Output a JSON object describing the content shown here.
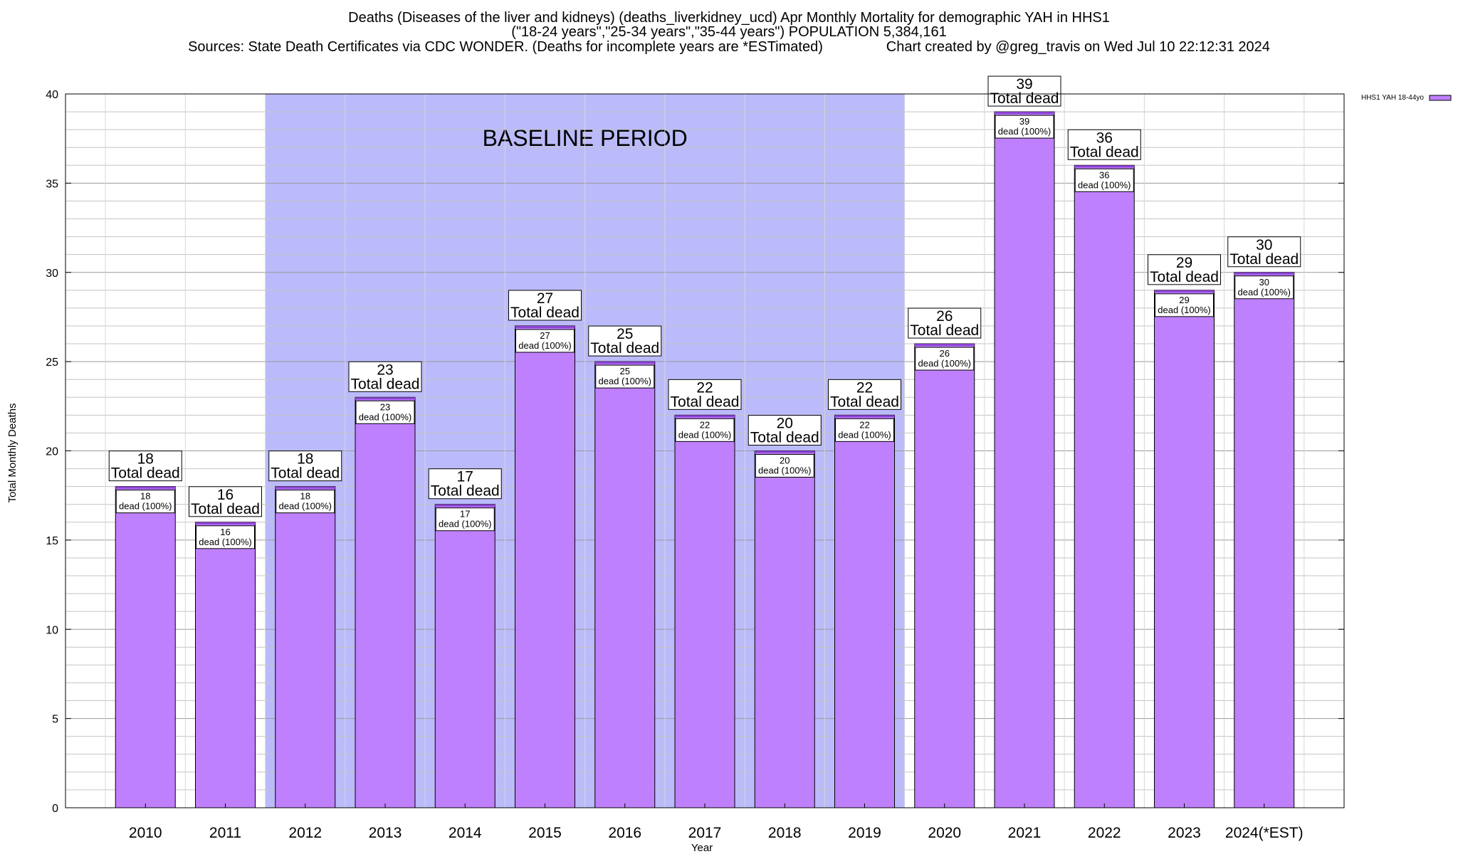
{
  "header": {
    "line1": "Deaths (Diseases of the liver and kidneys) (deaths_liverkidney_ucd) Apr Monthly Mortality for demographic YAH in HHS1",
    "line2": "(\"18-24 years\",\"25-34 years\",\"35-44 years\") POPULATION 5,384,161",
    "line3": "Sources: State Death Certificates via CDC WONDER. (Deaths for incomplete years are *ESTimated)                Chart created by @greg_travis on Wed Jul 10 22:12:31 2024"
  },
  "chart_data": {
    "type": "bar",
    "xlabel": "Year",
    "ylabel": "Total Monthly Deaths",
    "ylim": [
      0,
      40
    ],
    "yticks": [
      0,
      5,
      10,
      15,
      20,
      25,
      30,
      35,
      40
    ],
    "minor_grid_step": 1,
    "categories": [
      "2010",
      "2011",
      "2012",
      "2013",
      "2014",
      "2015",
      "2016",
      "2017",
      "2018",
      "2019",
      "2020",
      "2021",
      "2022",
      "2023",
      "2024(*EST)"
    ],
    "series": [
      {
        "name": "HHS1 YAH 18-44yo",
        "values": [
          18,
          16,
          18,
          23,
          17,
          27,
          25,
          22,
          20,
          22,
          26,
          39,
          36,
          29,
          30
        ],
        "inner_labels": [
          "18\ndead (100%)",
          "16\ndead (100%)",
          "18\ndead (100%)",
          "23\ndead (100%)",
          "17\ndead (100%)",
          "27\ndead (100%)",
          "25\ndead (100%)",
          "22\ndead (100%)",
          "20\ndead (100%)",
          "22\ndead (100%)",
          "26\ndead (100%)",
          "39\ndead (100%)",
          "36\ndead (100%)",
          "29\ndead (100%)",
          "30\ndead (100%)"
        ]
      }
    ],
    "total_labels": [
      "18\nTotal dead",
      "16\nTotal dead",
      "18\nTotal dead",
      "23\nTotal dead",
      "17\nTotal dead",
      "27\nTotal dead",
      "25\nTotal dead",
      "22\nTotal dead",
      "20\nTotal dead",
      "22\nTotal dead",
      "26\nTotal dead",
      "39\nTotal dead",
      "36\nTotal dead",
      "29\nTotal dead",
      "30\nTotal dead"
    ],
    "baseline": {
      "label": "BASELINE PERIOD",
      "from": "2012",
      "to": "2019",
      "color": "#bbbbfb"
    },
    "legend_position": "top-right",
    "grid": true,
    "colors": {
      "bar": "#bf80fe",
      "bar_top": "#8e44d6",
      "baseline": "#bbbbfb"
    }
  }
}
